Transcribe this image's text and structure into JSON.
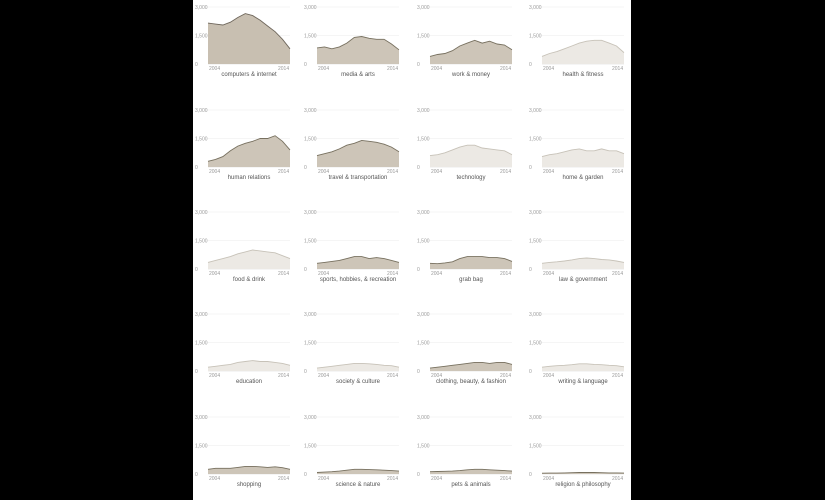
{
  "colors": {
    "background": "#000000",
    "panel": "#ffffff",
    "title": "#555555",
    "tick": "#9a9a9a"
  },
  "shared": {
    "ylim": [
      0,
      3000
    ],
    "y_ticks": [
      "0",
      "1,500",
      "3,000"
    ],
    "x_ticks": [
      "2004",
      "2014"
    ]
  },
  "chart_data": [
    {
      "type": "area",
      "title": "computers & internet",
      "x_range": [
        2004,
        2014
      ],
      "fill": "#c8bfb1",
      "stroke": "#6f675c",
      "values": [
        2150,
        2100,
        2050,
        2200,
        2450,
        2650,
        2550,
        2300,
        2000,
        1700,
        1300,
        800
      ]
    },
    {
      "type": "area",
      "title": "media & arts",
      "x_range": [
        2004,
        2014
      ],
      "fill": "#cdc5b8",
      "stroke": "#77705f",
      "values": [
        850,
        900,
        800,
        900,
        1100,
        1400,
        1450,
        1350,
        1300,
        1300,
        1050,
        750
      ]
    },
    {
      "type": "area",
      "title": "work & money",
      "x_range": [
        2004,
        2014
      ],
      "fill": "#cdc5b8",
      "stroke": "#77705f",
      "values": [
        400,
        500,
        550,
        700,
        950,
        1100,
        1250,
        1100,
        1200,
        1050,
        1000,
        750
      ]
    },
    {
      "type": "area",
      "title": "health & fitness",
      "x_range": [
        2004,
        2014
      ],
      "fill": "#ece9e4",
      "stroke": "#c7c2b8",
      "values": [
        400,
        550,
        650,
        800,
        950,
        1100,
        1200,
        1250,
        1250,
        1100,
        950,
        600
      ]
    },
    {
      "type": "area",
      "title": "human relations",
      "x_range": [
        2004,
        2014
      ],
      "fill": "#cdc5b8",
      "stroke": "#77705f",
      "values": [
        300,
        400,
        550,
        850,
        1100,
        1250,
        1350,
        1500,
        1500,
        1650,
        1350,
        900
      ]
    },
    {
      "type": "area",
      "title": "travel & transportation",
      "x_range": [
        2004,
        2014
      ],
      "fill": "#cdc5b8",
      "stroke": "#77705f",
      "values": [
        600,
        700,
        800,
        950,
        1150,
        1250,
        1400,
        1350,
        1300,
        1200,
        1050,
        800
      ]
    },
    {
      "type": "area",
      "title": "technology",
      "x_range": [
        2004,
        2014
      ],
      "fill": "#ece9e4",
      "stroke": "#c7c2b8",
      "values": [
        600,
        650,
        750,
        900,
        1050,
        1150,
        1150,
        1000,
        950,
        900,
        850,
        650
      ]
    },
    {
      "type": "area",
      "title": "home & garden",
      "x_range": [
        2004,
        2014
      ],
      "fill": "#ece9e4",
      "stroke": "#c7c2b8",
      "values": [
        550,
        650,
        700,
        800,
        900,
        950,
        850,
        850,
        950,
        850,
        850,
        700
      ]
    },
    {
      "type": "area",
      "title": "food & drink",
      "x_range": [
        2004,
        2014
      ],
      "fill": "#ece9e4",
      "stroke": "#c7c2b8",
      "values": [
        350,
        450,
        550,
        650,
        800,
        900,
        1000,
        950,
        900,
        850,
        700,
        550
      ]
    },
    {
      "type": "area",
      "title": "sports, hobbies, & recreation",
      "x_range": [
        2004,
        2014
      ],
      "fill": "#cdc5b8",
      "stroke": "#77705f",
      "values": [
        300,
        350,
        400,
        450,
        550,
        650,
        650,
        550,
        600,
        550,
        450,
        350
      ]
    },
    {
      "type": "area",
      "title": "grab bag",
      "x_range": [
        2004,
        2014
      ],
      "fill": "#cdc5b8",
      "stroke": "#77705f",
      "values": [
        300,
        280,
        320,
        380,
        550,
        650,
        650,
        650,
        600,
        600,
        550,
        400
      ]
    },
    {
      "type": "area",
      "title": "law & government",
      "x_range": [
        2004,
        2014
      ],
      "fill": "#ece9e4",
      "stroke": "#c7c2b8",
      "values": [
        300,
        350,
        380,
        420,
        480,
        550,
        580,
        550,
        500,
        480,
        420,
        350
      ]
    },
    {
      "type": "area",
      "title": "education",
      "x_range": [
        2004,
        2014
      ],
      "fill": "#ece9e4",
      "stroke": "#c7c2b8",
      "values": [
        200,
        250,
        300,
        350,
        450,
        500,
        550,
        500,
        500,
        450,
        400,
        300
      ]
    },
    {
      "type": "area",
      "title": "society & culture",
      "x_range": [
        2004,
        2014
      ],
      "fill": "#ece9e4",
      "stroke": "#c7c2b8",
      "values": [
        150,
        200,
        250,
        300,
        350,
        400,
        400,
        380,
        350,
        300,
        280,
        200
      ]
    },
    {
      "type": "area",
      "title": "clothing, beauty, & fashion",
      "x_range": [
        2004,
        2014
      ],
      "fill": "#cdc5b8",
      "stroke": "#77705f",
      "values": [
        150,
        200,
        250,
        300,
        350,
        400,
        450,
        450,
        400,
        450,
        450,
        350
      ]
    },
    {
      "type": "area",
      "title": "writing & language",
      "x_range": [
        2004,
        2014
      ],
      "fill": "#ece9e4",
      "stroke": "#c7c2b8",
      "values": [
        200,
        250,
        280,
        300,
        330,
        380,
        380,
        350,
        330,
        300,
        280,
        220
      ]
    },
    {
      "type": "area",
      "title": "shopping",
      "x_range": [
        2004,
        2014
      ],
      "fill": "#cdc5b8",
      "stroke": "#77705f",
      "values": [
        250,
        300,
        300,
        300,
        350,
        400,
        400,
        380,
        350,
        380,
        330,
        250
      ]
    },
    {
      "type": "area",
      "title": "science & nature",
      "x_range": [
        2004,
        2014
      ],
      "fill": "#cdc5b8",
      "stroke": "#77705f",
      "values": [
        80,
        100,
        120,
        150,
        200,
        250,
        250,
        230,
        220,
        200,
        180,
        150
      ]
    },
    {
      "type": "area",
      "title": "pets & animals",
      "x_range": [
        2004,
        2014
      ],
      "fill": "#cdc5b8",
      "stroke": "#77705f",
      "values": [
        120,
        130,
        140,
        150,
        180,
        220,
        250,
        250,
        220,
        200,
        180,
        150
      ]
    },
    {
      "type": "area",
      "title": "religion & philosophy",
      "x_range": [
        2004,
        2014
      ],
      "fill": "#cdc5b8",
      "stroke": "#77705f",
      "values": [
        40,
        50,
        50,
        60,
        70,
        80,
        80,
        80,
        70,
        60,
        60,
        50
      ]
    }
  ]
}
